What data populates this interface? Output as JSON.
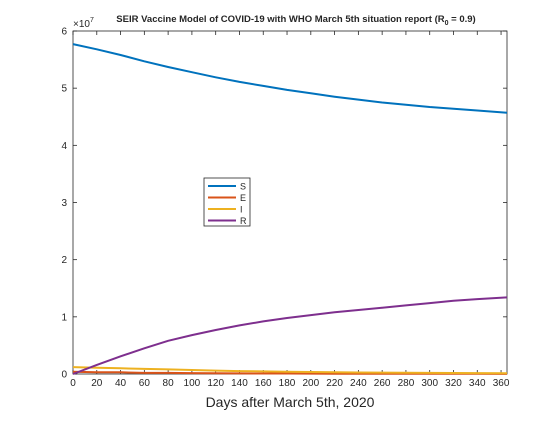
{
  "chart_data": {
    "type": "line",
    "title_main": "SEIR Vaccine Model of COVID-19 with WHO March 5th situation report (R",
    "title_sub": "0",
    "title_tail": " = 0.9)",
    "xlabel": "Days after March 5th, 2020",
    "ylabel": "",
    "xlim": [
      0,
      365
    ],
    "ylim": [
      0,
      6
    ],
    "exponent_label": "×10",
    "exponent_power": "7",
    "x_ticks": [
      0,
      20,
      40,
      60,
      80,
      100,
      120,
      140,
      160,
      180,
      200,
      220,
      240,
      260,
      280,
      300,
      320,
      340,
      360
    ],
    "y_ticks": [
      0,
      1,
      2,
      3,
      4,
      5,
      6
    ],
    "grid": false,
    "legend_position": "center-left",
    "x": [
      0,
      20,
      40,
      60,
      80,
      100,
      120,
      140,
      160,
      180,
      200,
      220,
      240,
      260,
      280,
      300,
      320,
      340,
      365
    ],
    "series": [
      {
        "name": "S",
        "color": "#0072BD",
        "values": [
          5.77,
          5.68,
          5.58,
          5.47,
          5.37,
          5.28,
          5.19,
          5.11,
          5.04,
          4.97,
          4.91,
          4.85,
          4.8,
          4.75,
          4.71,
          4.67,
          4.64,
          4.61,
          4.57
        ]
      },
      {
        "name": "E",
        "color": "#D95319",
        "values": [
          0.04,
          0.03,
          0.03,
          0.02,
          0.02,
          0.015,
          0.013,
          0.011,
          0.009,
          0.008,
          0.007,
          0.006,
          0.005,
          0.004,
          0.004,
          0.003,
          0.003,
          0.003,
          0.002
        ]
      },
      {
        "name": "I",
        "color": "#EDB120",
        "values": [
          0.12,
          0.11,
          0.1,
          0.09,
          0.08,
          0.07,
          0.06,
          0.05,
          0.045,
          0.04,
          0.035,
          0.03,
          0.027,
          0.024,
          0.021,
          0.019,
          0.017,
          0.015,
          0.013
        ]
      },
      {
        "name": "R",
        "color": "#7E2F8E",
        "values": [
          0.0,
          0.16,
          0.31,
          0.45,
          0.58,
          0.68,
          0.77,
          0.85,
          0.92,
          0.98,
          1.03,
          1.08,
          1.12,
          1.16,
          1.2,
          1.24,
          1.28,
          1.31,
          1.34
        ]
      }
    ]
  }
}
